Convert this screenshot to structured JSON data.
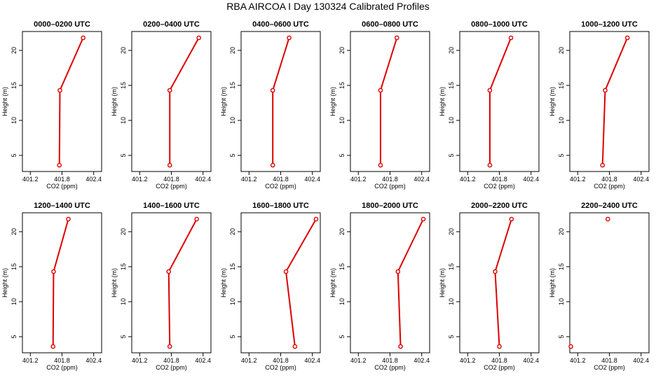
{
  "chart_data": {
    "type": "line",
    "title": "RBA AIRCOA I  Day 130324  Calibrated Profiles",
    "xlabel": "CO2 (ppm)",
    "ylabel": "Height (m)",
    "xlim": [
      401.05,
      402.55
    ],
    "ylim": [
      2.7,
      22.7
    ],
    "xticks": [
      "401.2",
      "401.8",
      "402.4"
    ],
    "xtick_values": [
      401.2,
      401.8,
      402.4
    ],
    "yticks": [
      "5",
      "10",
      "15",
      "20"
    ],
    "ytick_values": [
      5,
      10,
      15,
      20
    ],
    "heights": [
      3.6,
      14.3,
      21.8
    ],
    "colors": {
      "line": "#dd0000",
      "marker": "#dd0000",
      "axes": "#000000"
    },
    "panels": [
      {
        "title": "0000–0200 UTC",
        "co2": [
          401.75,
          401.76,
          402.2
        ]
      },
      {
        "title": "0200–0400 UTC",
        "co2": [
          401.77,
          401.77,
          402.32
        ]
      },
      {
        "title": "0400–0600 UTC",
        "co2": [
          401.65,
          401.65,
          401.96
        ]
      },
      {
        "title": "0600–0800 UTC",
        "co2": [
          401.62,
          401.62,
          401.93
        ]
      },
      {
        "title": "0800–1000 UTC",
        "co2": [
          401.62,
          401.62,
          402.02
        ]
      },
      {
        "title": "1000–1200 UTC",
        "co2": [
          401.67,
          401.72,
          402.14
        ]
      },
      {
        "title": "1200–1400 UTC",
        "co2": [
          401.63,
          401.64,
          401.92
        ]
      },
      {
        "title": "1400–1600 UTC",
        "co2": [
          401.77,
          401.75,
          402.28
        ]
      },
      {
        "title": "1600–1800 UTC",
        "co2": [
          402.07,
          401.9,
          402.47
        ]
      },
      {
        "title": "1800–2000 UTC",
        "co2": [
          402.0,
          401.95,
          402.43
        ]
      },
      {
        "title": "2000–2200 UTC",
        "co2": [
          401.8,
          401.72,
          402.03
        ]
      },
      {
        "title": "2200–2400 UTC",
        "co2": [
          401.07,
          null,
          401.77
        ]
      }
    ]
  }
}
